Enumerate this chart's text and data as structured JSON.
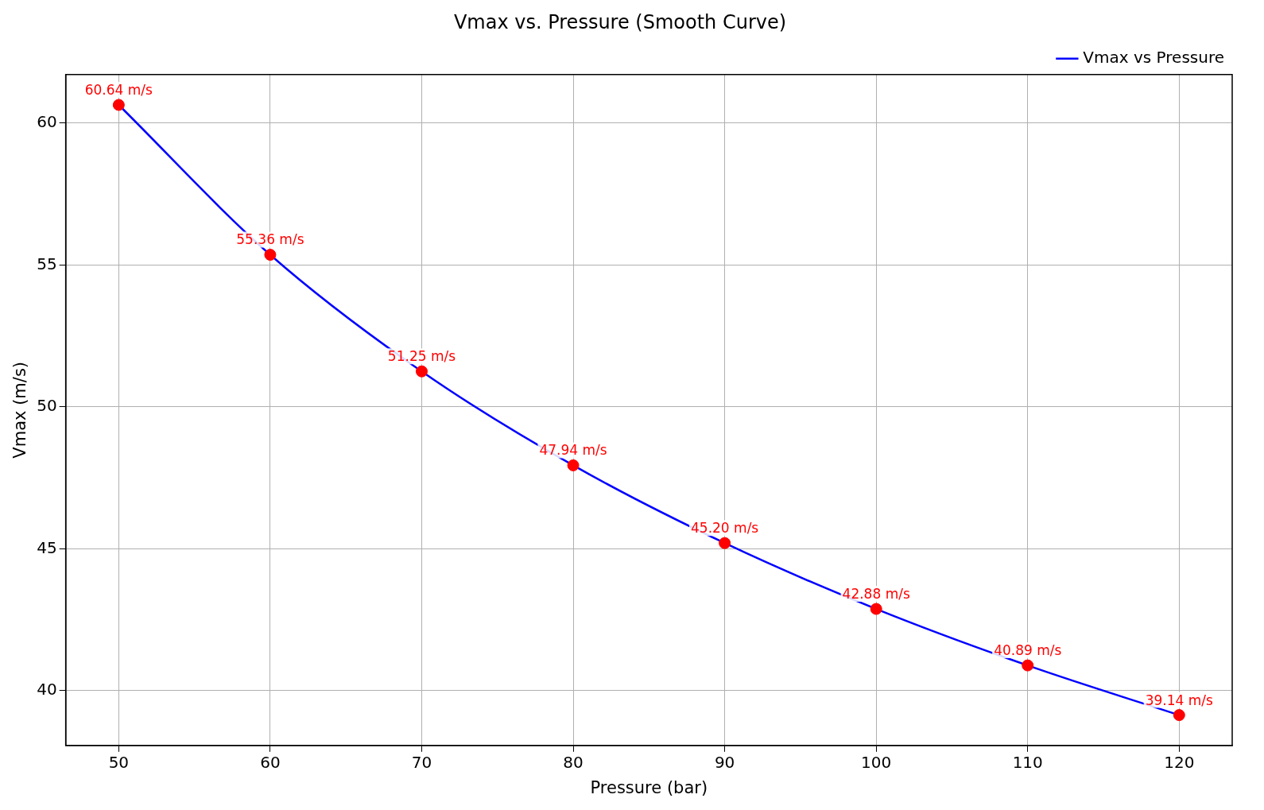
{
  "chart_data": {
    "type": "line",
    "title": "Vmax vs. Pressure (Smooth Curve)",
    "xlabel": "Pressure (bar)",
    "ylabel": "Vmax (m/s)",
    "x": [
      50,
      60,
      70,
      80,
      90,
      100,
      110,
      120
    ],
    "series": [
      {
        "name": "Vmax vs Pressure",
        "type": "line",
        "color": "#0000ff",
        "marker": "none",
        "values": [
          60.64,
          55.36,
          51.25,
          47.94,
          45.2,
          42.88,
          40.89,
          39.14
        ]
      },
      {
        "type": "scatter",
        "color": "#ff0000",
        "marker": "circle",
        "values": [
          60.64,
          55.36,
          51.25,
          47.94,
          45.2,
          42.88,
          40.89,
          39.14
        ],
        "value_labels": [
          "60.64 m/s",
          "55.36 m/s",
          "51.25 m/s",
          "47.94 m/s",
          "45.20 m/s",
          "42.88 m/s",
          "40.89 m/s",
          "39.14 m/s"
        ]
      }
    ],
    "xlim": [
      46.5,
      123.5
    ],
    "xticks": [
      50,
      60,
      70,
      80,
      90,
      100,
      110,
      120
    ],
    "ylim": [
      38.07,
      61.71
    ],
    "yticks": [
      40,
      45,
      50,
      55,
      60
    ],
    "grid": true,
    "legend": "top right"
  }
}
